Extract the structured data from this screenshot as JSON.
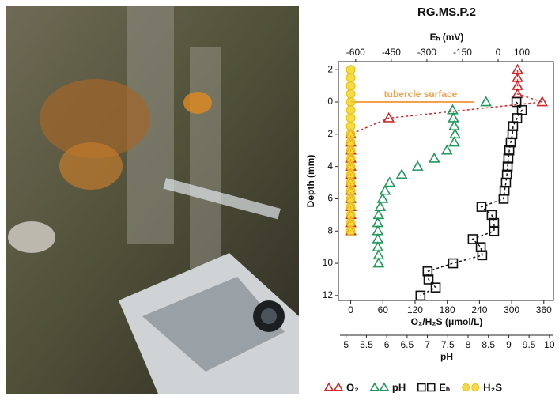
{
  "chart_data": {
    "type": "profile",
    "title": "RG.MS.P.2",
    "ylabel": "Depth (mm)",
    "ylim": [
      12.3,
      -2.5
    ],
    "yticks": [
      -2,
      0,
      2,
      4,
      6,
      8,
      10,
      12
    ],
    "xlabel": "O₂/H₂S (μmol/L)",
    "xlim": [
      -20,
      378
    ],
    "xticks": [
      0,
      60,
      120,
      180,
      240,
      300,
      360
    ],
    "x2label": "Eₕ (mV)",
    "x2lim": [
      -666,
      233
    ],
    "x2ticks": [
      -600,
      -450,
      -300,
      -150,
      0,
      100
    ],
    "x3label": "pH",
    "x3lim": [
      4.85,
      10.1
    ],
    "x3ticks": [
      5,
      5.5,
      6,
      6.5,
      7,
      7.5,
      8,
      8.5,
      9,
      9.5,
      10
    ],
    "annotation": {
      "text": "tubercle surface",
      "depth": 0,
      "color": "#f5a04a"
    },
    "series": [
      {
        "name": "O₂",
        "color": "#d62728",
        "marker": "triangle",
        "line": true,
        "y": [
          -2,
          -1.5,
          -1,
          -0.5,
          0,
          1,
          2,
          2.5,
          3,
          3.5,
          4,
          4.5,
          5,
          5.5,
          6,
          6.5,
          7,
          7.5,
          8
        ],
        "x": [
          311,
          311,
          311,
          311,
          357,
          71,
          0,
          0,
          0,
          0,
          0,
          0,
          0,
          0,
          0,
          0,
          0,
          0,
          0
        ]
      },
      {
        "name": "pH",
        "color": "#1f9a5a",
        "marker": "triangle",
        "line": false,
        "axis": "x3",
        "y": [
          0,
          0.5,
          1,
          1.5,
          2,
          2.5,
          3,
          3.5,
          4,
          4.5,
          5,
          5.5,
          6,
          6.5,
          7,
          7.5,
          8,
          8.5,
          9,
          9.5,
          10
        ],
        "x": [
          8.44,
          7.62,
          7.64,
          7.66,
          7.68,
          7.66,
          7.48,
          7.17,
          6.76,
          6.37,
          6.07,
          5.96,
          5.9,
          5.84,
          5.8,
          5.78,
          5.78,
          5.78,
          5.78,
          5.8,
          5.8
        ]
      },
      {
        "name": "Eₕ",
        "color": "#111111",
        "marker": "square",
        "line": true,
        "axis": "x2",
        "y": [
          0,
          0.5,
          1,
          1.5,
          2,
          2.5,
          3,
          3.5,
          4,
          4.5,
          5,
          5.5,
          6,
          6.5,
          7,
          7.5,
          8,
          8.5,
          9,
          9.5,
          10,
          10.5,
          11,
          11.5,
          12
        ],
        "x": [
          77,
          100,
          80,
          63,
          60,
          53,
          47,
          43,
          40,
          37,
          33,
          27,
          23,
          -70,
          -27,
          -17,
          -17,
          -107,
          -73,
          -67,
          -190,
          -297,
          -293,
          -263,
          -327
        ]
      },
      {
        "name": "H₂S",
        "color": "#f2d11b",
        "marker": "circle",
        "line": false,
        "y": [
          -2,
          -1.5,
          -1,
          -0.5,
          0,
          0.5,
          1,
          1.5,
          2,
          2.5,
          3,
          3.5,
          4,
          4.5,
          5,
          5.5,
          6,
          6.5,
          7,
          7.5,
          8
        ],
        "x": [
          0,
          0,
          0,
          0,
          0,
          0,
          0,
          0,
          0,
          0,
          0,
          0,
          0,
          0,
          0,
          0,
          0,
          0,
          0,
          0,
          0
        ]
      }
    ]
  }
}
